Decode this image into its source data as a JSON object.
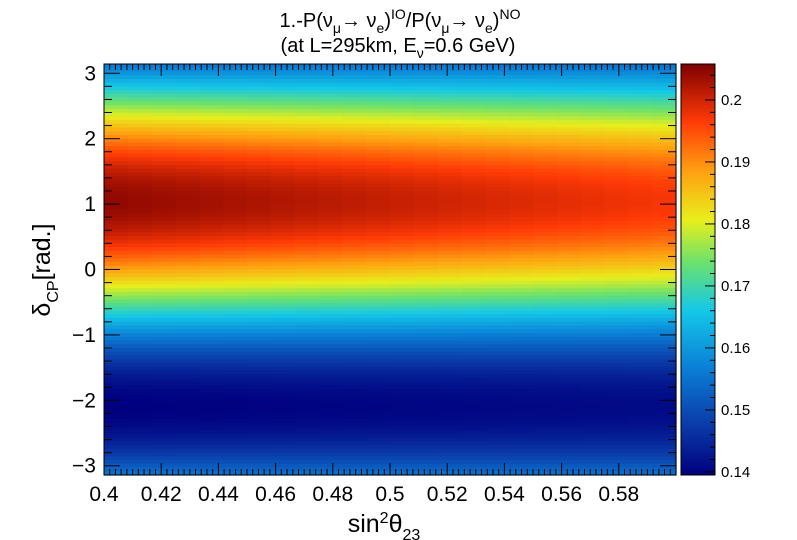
{
  "chart_data": {
    "type": "heatmap",
    "title_line1": "1.-P(ν_μ→ ν_e)^IO/P(ν_μ→ ν_e)^NO",
    "title_line2": "(at L=295km, E_ν=0.6 GeV)",
    "xlabel": "sin²θ₂₃",
    "ylabel": "δ_CP[rad.]",
    "xlim": [
      0.4,
      0.6
    ],
    "ylim": [
      -3.14159,
      3.14159
    ],
    "zlim": [
      0.1395,
      0.2058
    ],
    "x_ticks": [
      "0.4",
      "0.42",
      "0.44",
      "0.46",
      "0.48",
      "0.5",
      "0.52",
      "0.54",
      "0.56",
      "0.58"
    ],
    "y_ticks": [
      "−3",
      "−2",
      "−1",
      "0",
      "1",
      "2",
      "3"
    ],
    "z_ticks": [
      "0.14",
      "0.15",
      "0.16",
      "0.17",
      "0.18",
      "0.19",
      "0.2"
    ],
    "model": {
      "description_of_values": "z(x,y) = center(x) + amplitude(x) * sin(y + phase)",
      "center_at_x": {
        "0.4": 0.172,
        "0.6": 0.169
      },
      "amplitude_at_x": {
        "0.4": 0.0325,
        "0.6": 0.028
      },
      "phase_rad": 0.53
    },
    "palette": "rainbow (dark blue → blue → cyan → green → yellow → orange → red → dark red)",
    "grid": false,
    "legend": "color scale at right"
  },
  "colors": {
    "background": "#ffffff",
    "frame": "#000000"
  }
}
